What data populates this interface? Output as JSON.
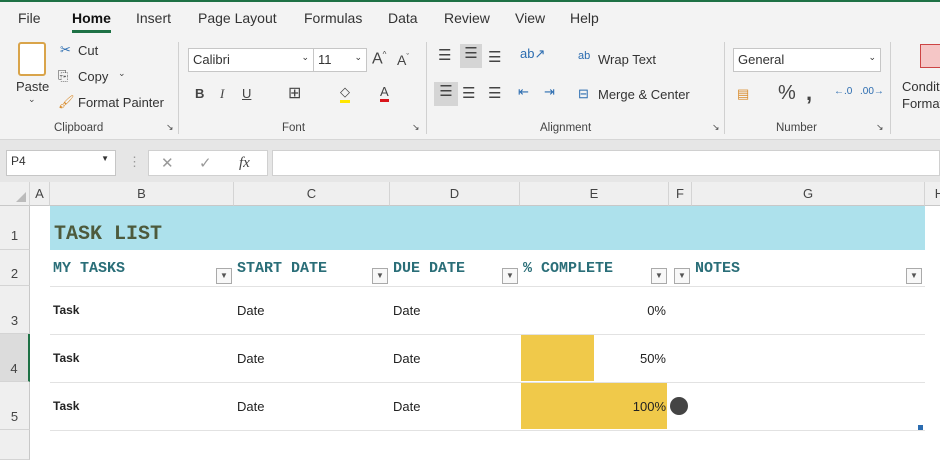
{
  "tabs": [
    "File",
    "Home",
    "Insert",
    "Page Layout",
    "Formulas",
    "Data",
    "Review",
    "View",
    "Help"
  ],
  "ribbon": {
    "clipboard": {
      "paste": "Paste",
      "cut": "Cut",
      "copy": "Copy",
      "format_painter": "Format Painter",
      "label": "Clipboard"
    },
    "font": {
      "name": "Calibri",
      "size": "11",
      "label": "Font",
      "bold": "B",
      "italic": "I",
      "underline": "U"
    },
    "alignment": {
      "wrap_text": "Wrap Text",
      "merge_center": "Merge & Center",
      "label": "Alignment"
    },
    "number": {
      "format": "General",
      "percent": "%",
      "comma": "'",
      "label": "Number"
    },
    "conditional": "Conditional Formatting"
  },
  "formula_bar": {
    "name_box": "P4",
    "fx": "fx",
    "value": ""
  },
  "columns": [
    "A",
    "B",
    "C",
    "D",
    "E",
    "F",
    "G",
    "H"
  ],
  "rows": [
    "1",
    "2",
    "3",
    "4",
    "5"
  ],
  "sheet": {
    "title": "TASK LIST",
    "headers": [
      "MY TASKS",
      "START DATE",
      "DUE DATE",
      "% COMPLETE",
      "NOTES"
    ],
    "tasks": [
      {
        "task": "Task",
        "start": "Date",
        "due": "Date",
        "complete": "0%",
        "pct": 0
      },
      {
        "task": "Task",
        "start": "Date",
        "due": "Date",
        "complete": "50%",
        "pct": 50
      },
      {
        "task": "Task",
        "start": "Date",
        "due": "Date",
        "complete": "100%",
        "pct": 100
      }
    ]
  },
  "colors": {
    "title_fill": "#ade1ec",
    "bar": "#f0c94a",
    "header_text": "#2a6e78",
    "accent": "#1e7145"
  }
}
